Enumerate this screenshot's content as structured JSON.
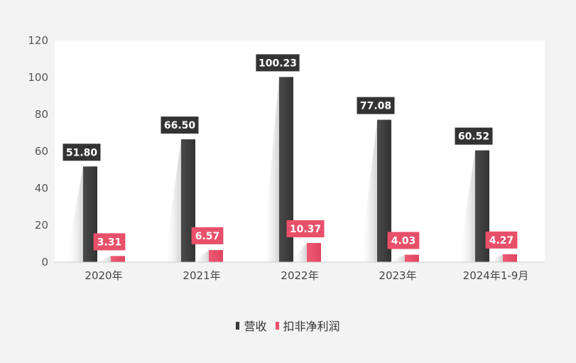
{
  "chart_data": {
    "type": "bar",
    "categories": [
      "2020年",
      "2021年",
      "2022年",
      "2023年",
      "2024年1-9月"
    ],
    "series": [
      {
        "name": "营收",
        "values": [
          51.8,
          66.5,
          100.23,
          77.08,
          60.52
        ],
        "color": "#3a3a3a",
        "label_color": "#333333"
      },
      {
        "name": "扣非净利润",
        "values": [
          3.31,
          6.57,
          10.37,
          4.03,
          4.27
        ],
        "color": "#e8506a",
        "label_color": "#e8506a"
      }
    ],
    "data_labels": [
      [
        "51.80",
        "66.50",
        "100.23",
        "77.08",
        "60.52"
      ],
      [
        "3.31",
        "6.57",
        "10.37",
        "4.03",
        "4.27"
      ]
    ],
    "yticks": [
      "0",
      "20",
      "40",
      "60",
      "80",
      "100",
      "120"
    ],
    "ylim": [
      0,
      120
    ],
    "grid": false,
    "legend_position": "bottom"
  }
}
